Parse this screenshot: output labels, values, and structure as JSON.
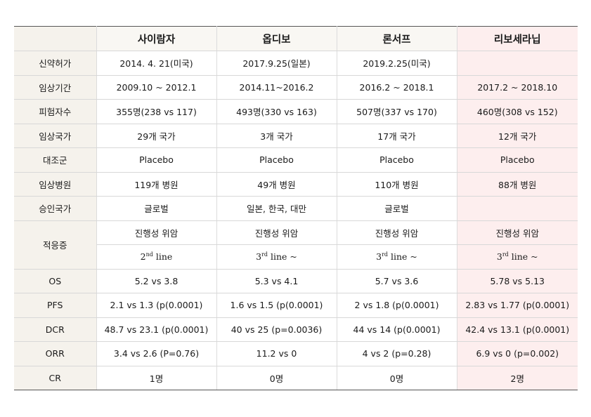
{
  "headers": [
    "",
    "사이람자",
    "옵디보",
    "론서프",
    "리보세라닙"
  ],
  "rows": [
    {
      "label": "신약허가",
      "cells": [
        "2014. 4. 21(미국)",
        "2017.9.25(일본)",
        "2019.2.25(미국)",
        ""
      ]
    },
    {
      "label": "임상기간",
      "cells": [
        "2009.10 ~ 2012.1",
        "2014.11~2016.2",
        "2016.2 ~ 2018.1",
        "2017.2 ~ 2018.10"
      ]
    },
    {
      "label": "피험자수",
      "cells": [
        "355명(238 vs 117)",
        "493명(330 vs 163)",
        "507명(337 vs 170)",
        "460명(308 vs 152)"
      ]
    },
    {
      "label": "임상국가",
      "cells": [
        "29개 국가",
        "3개 국가",
        "17개 국가",
        "12개 국가"
      ]
    },
    {
      "label": "대조군",
      "cells": [
        "Placebo",
        "Placebo",
        "Placebo",
        "Placebo"
      ]
    },
    {
      "label": "임상병원",
      "cells": [
        "119개 병원",
        "49개 병원",
        "110개 병원",
        "88개 병원"
      ]
    },
    {
      "label": "승인국가",
      "cells": [
        "글로벌",
        "일본, 한국, 대만",
        "글로벌",
        ""
      ]
    }
  ],
  "indication": {
    "label": "적응증",
    "row1": [
      "진행성 위암",
      "진행성 위암",
      "진행성 위암",
      "진행성 위암"
    ],
    "row2": [
      {
        "num": "2",
        "sup": "nd",
        "rest": " line"
      },
      {
        "num": "3",
        "sup": "rd",
        "rest": " line ~"
      },
      {
        "num": "3",
        "sup": "rd",
        "rest": " line ~"
      },
      {
        "num": "3",
        "sup": "rd",
        "rest": " line ~"
      }
    ]
  },
  "results": [
    {
      "label": "OS",
      "cells": [
        "5.2 vs 3.8",
        "5.3 vs 4.1",
        "5.7 vs 3.6",
        "5.78 vs 5.13"
      ]
    },
    {
      "label": "PFS",
      "cells": [
        "2.1 vs 1.3 (p(0.0001)",
        "1.6 vs 1.5 (p(0.0001)",
        "2 vs 1.8 (p(0.0001)",
        "2.83 vs 1.77 (p(0.0001)"
      ]
    },
    {
      "label": "DCR",
      "cells": [
        "48.7 vs 23.1 (p(0.0001)",
        "40 vs 25 (p=0.0036)",
        "44 vs 14 (p(0.0001)",
        "42.4 vs 13.1 (p(0.0001)"
      ]
    },
    {
      "label": "ORR",
      "cells": [
        "3.4 vs 2.6 (P=0.76)",
        "11.2 vs 0",
        "4 vs 2 (p=0.28)",
        "6.9 vs 0 (p=0.002)"
      ]
    },
    {
      "label": "CR",
      "cells": [
        "1명",
        "0명",
        "0명",
        "2명"
      ]
    }
  ]
}
